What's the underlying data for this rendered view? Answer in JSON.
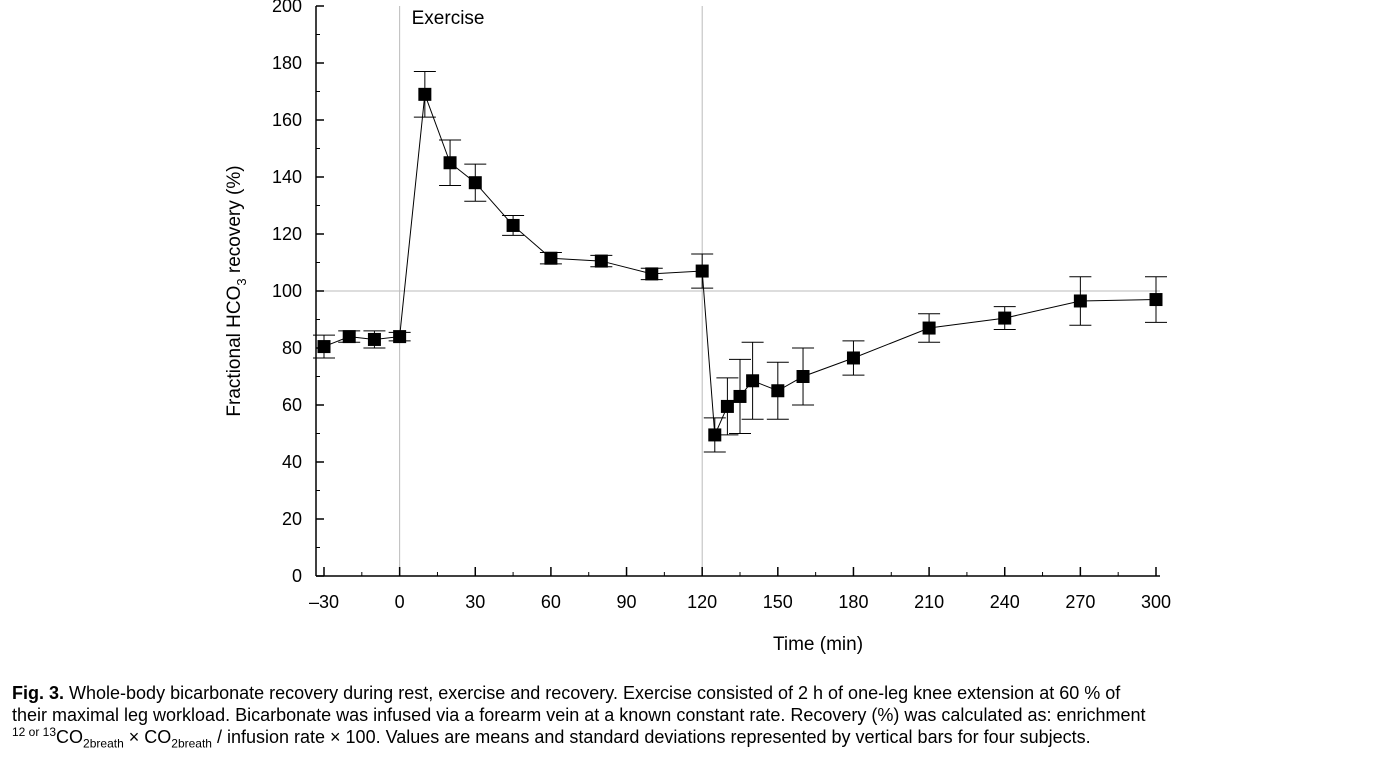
{
  "chart_data": {
    "type": "line",
    "xlabel": "Time (min)",
    "ylabel_parts": [
      "Fractional HCO",
      "3",
      " recovery (%)"
    ],
    "xlim": [
      -35,
      300
    ],
    "ylim": [
      0,
      200
    ],
    "x_ticks": [
      -30,
      0,
      30,
      60,
      90,
      120,
      150,
      180,
      210,
      240,
      270,
      300
    ],
    "x_tick_labels": [
      "–30",
      "0",
      "30",
      "60",
      "90",
      "120",
      "150",
      "180",
      "210",
      "240",
      "270",
      "300"
    ],
    "y_ticks": [
      0,
      20,
      40,
      60,
      80,
      100,
      120,
      140,
      160,
      180,
      200
    ],
    "y_tick_labels": [
      "0",
      "20",
      "40",
      "60",
      "80",
      "100",
      "120",
      "140",
      "160",
      "180",
      "200"
    ],
    "grid": false,
    "reference_lines": {
      "vertical": [
        0,
        120
      ],
      "horizontal": [
        100
      ]
    },
    "annotations": [
      {
        "text": "Exercise",
        "x": 0,
        "y": 200
      }
    ],
    "series": [
      {
        "marker": "square",
        "color": "#000000",
        "x": [
          -30,
          -20,
          -10,
          0,
          10,
          20,
          30,
          45,
          60,
          80,
          100,
          120,
          125,
          130,
          135,
          140,
          150,
          160,
          180,
          210,
          240,
          270,
          300
        ],
        "y": [
          80.5,
          84,
          83,
          84,
          169,
          145,
          138,
          123,
          111.5,
          110.5,
          106,
          107,
          49.5,
          59.5,
          63,
          68.5,
          65,
          70,
          76.5,
          87,
          90.5,
          96.5,
          97
        ],
        "err": [
          4,
          2,
          3,
          1.5,
          8,
          8,
          6.5,
          3.5,
          2,
          2,
          2,
          6,
          6,
          10,
          13,
          13.5,
          10,
          10,
          6,
          5,
          4,
          8.5,
          8
        ]
      }
    ]
  },
  "caption": {
    "fig_label": "Fig. 3.",
    "line1": " Whole-body bicarbonate recovery during rest, exercise and recovery. Exercise consisted of 2 h of one-leg knee extension at 60 % of",
    "line2": "their  maximal leg workload. Bicarbonate was infused via a forearm vein at a known constant rate. Recovery (%) was calculated as: enrichment",
    "line3_sup": "12 or 13",
    "line3_a": "CO",
    "line3_sub1": "2breath",
    "line3_b": " × CO",
    "line3_sub2": "2breath",
    "line3_c": " / infusion rate × 100. Values are means and standard deviations represented by vertical bars for four subjects."
  }
}
